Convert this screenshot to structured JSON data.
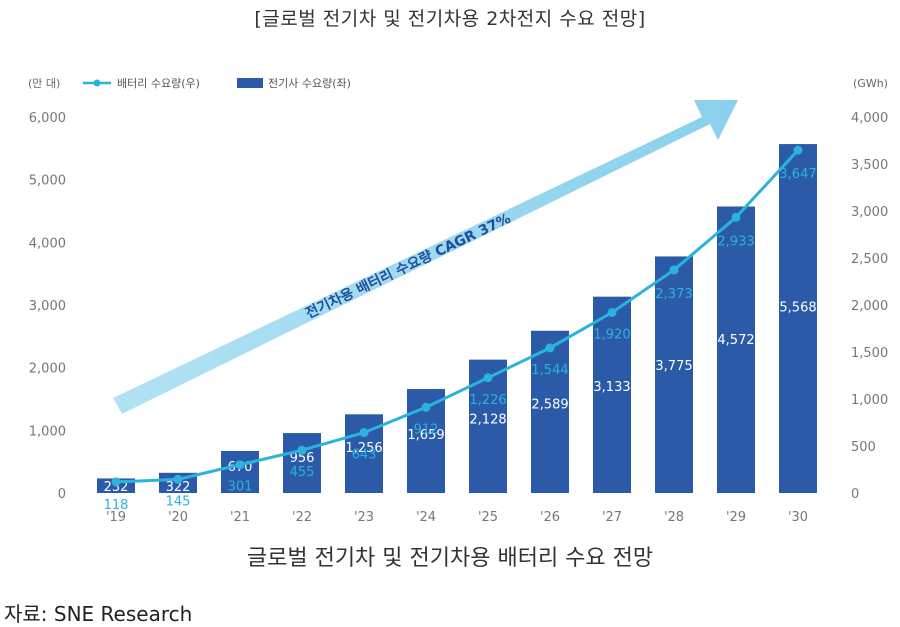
{
  "page_title": "[글로벌 전기차 및 전기차용 2차전지 수요 전망]",
  "caption": "글로벌 전기차 및 전기차용 배터리 수요 전망",
  "source": "자료: SNE Research",
  "chart_data": {
    "type": "bar",
    "categories": [
      "'19",
      "'20",
      "'21",
      "'22",
      "'23",
      "'24",
      "'25",
      "'26",
      "'27",
      "'28",
      "'29",
      "'30"
    ],
    "series": [
      {
        "name": "전기사 수요량(좌)",
        "type": "bar",
        "axis": "left",
        "color": "#2a5aa8",
        "values": [
          232,
          322,
          670,
          956,
          1256,
          1659,
          2128,
          2589,
          3133,
          3775,
          4572,
          5568
        ],
        "labels": [
          "232",
          "322",
          "670",
          "956",
          "1,256",
          "1,659",
          "2,128",
          "2,589",
          "3,133",
          "3,775",
          "4,572",
          "5,568"
        ]
      },
      {
        "name": "배터리 수요량(우)",
        "type": "line",
        "axis": "right",
        "color": "#2bb3de",
        "values": [
          118,
          145,
          301,
          455,
          643,
          912,
          1226,
          1544,
          1920,
          2373,
          2933,
          3647
        ],
        "labels": [
          "118",
          "145",
          "301",
          "455",
          "643",
          "912",
          "1,226",
          "1,544",
          "1,920",
          "2,373",
          "2,933",
          "3,647"
        ]
      }
    ],
    "left_axis": {
      "unit": "(만 대)",
      "ylim": [
        0,
        6000
      ],
      "ticks": [
        0,
        1000,
        2000,
        3000,
        4000,
        5000,
        6000
      ],
      "tick_labels": [
        "0",
        "1,000",
        "2,000",
        "3,000",
        "4,000",
        "5,000",
        "6,000"
      ]
    },
    "right_axis": {
      "unit": "(GWh)",
      "ylim": [
        0,
        4000
      ],
      "ticks": [
        0,
        500,
        1000,
        1500,
        2000,
        2500,
        3000,
        3500,
        4000
      ],
      "tick_labels": [
        "0",
        "500",
        "1,000",
        "1,500",
        "2,000",
        "2,500",
        "3,000",
        "3,500",
        "4,000"
      ]
    },
    "annotation": "전기차용 배터리 수요량 CAGR 37%",
    "annotation_color": "#8fd3ee",
    "legend_placement": "top-left",
    "grid": false
  }
}
